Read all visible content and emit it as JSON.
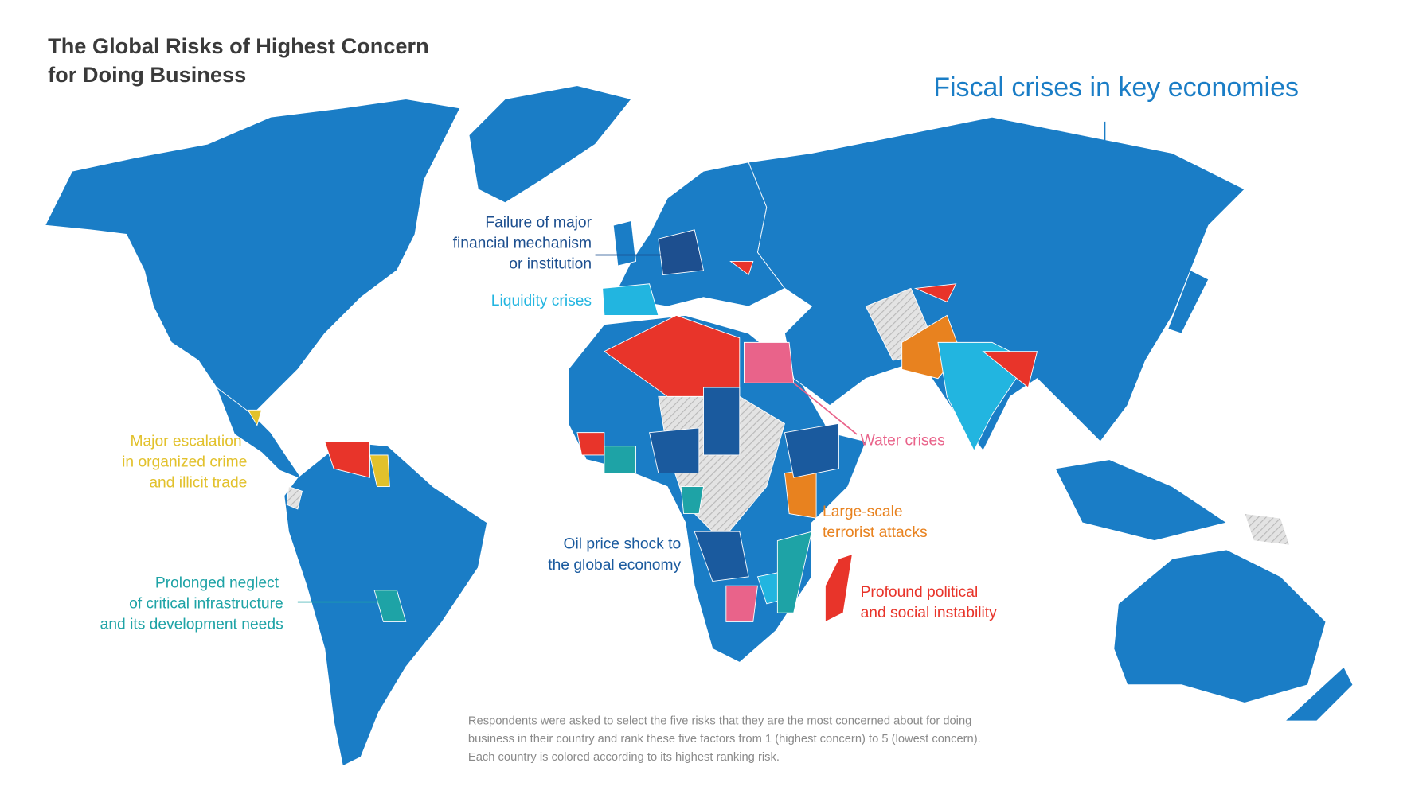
{
  "header": {
    "title_lines": [
      "The Global Risks of Highest Concern",
      "for Doing Business"
    ]
  },
  "risks": [
    {
      "lines": [
        "Fiscal crises in key economies"
      ],
      "color": "#1a7dc6"
    },
    {
      "lines": [
        "Failure of major",
        "financial mechanism",
        "or institution"
      ],
      "color": "#1d4f8f"
    },
    {
      "lines": [
        "Liquidity crises"
      ],
      "color": "#22b5e0"
    },
    {
      "lines": [
        "Major escalation",
        "in organized crime",
        "and illicit trade"
      ],
      "color": "#e2c12c"
    },
    {
      "lines": [
        "Prolonged neglect",
        "of critical infrastructure",
        "and its development needs"
      ],
      "color": "#1ea3a6"
    },
    {
      "lines": [
        "Oil price shock to",
        "the global economy"
      ],
      "color": "#1a5a9e"
    },
    {
      "lines": [
        "Water crises"
      ],
      "color": "#e9638a"
    },
    {
      "lines": [
        "Large-scale",
        "terrorist attacks"
      ],
      "color": "#e8821f"
    },
    {
      "lines": [
        "Profound political",
        "and social instability"
      ],
      "color": "#e8342a"
    }
  ],
  "footnote_lines": [
    "Respondents were asked to select the five risks that they are the most concerned about for doing",
    "business in their country and rank these five factors from 1 (highest concern) to 5 (lowest concern).",
    "Each country is colored according to its highest ranking risk."
  ]
}
